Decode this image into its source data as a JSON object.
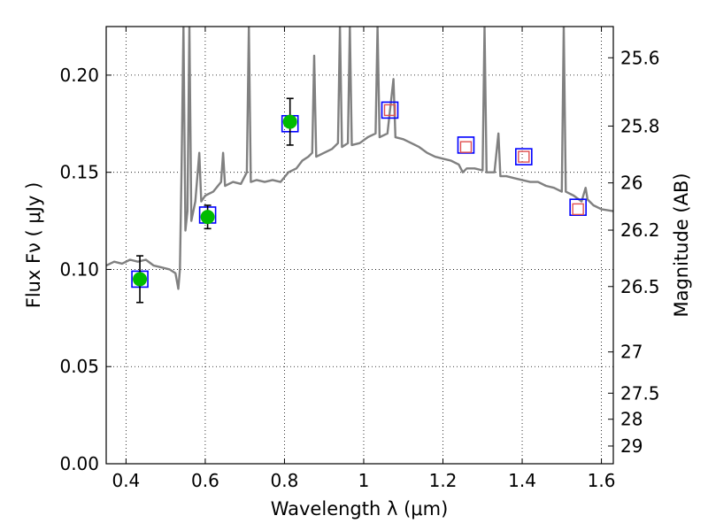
{
  "chart_data": {
    "type": "scatter",
    "xlabel": "Wavelength  λ (μm)",
    "ylabel": "Flux  Fν  ( μJy )",
    "y2label": "Magnitude (AB)",
    "xlim": [
      0.35,
      1.63
    ],
    "ylim": [
      0.0,
      0.225
    ],
    "grid": true,
    "colors": {
      "spectrum": "#808080",
      "observed_points": "#00bb00",
      "model_squares": "#0000ff",
      "synthetic_squares": "#e05050",
      "errorbars": "#000000"
    },
    "x_ticks": [
      {
        "value": 0.4,
        "label": "0.4"
      },
      {
        "value": 0.6,
        "label": "0.6"
      },
      {
        "value": 0.8,
        "label": "0.8"
      },
      {
        "value": 1.0,
        "label": "1"
      },
      {
        "value": 1.2,
        "label": "1.2"
      },
      {
        "value": 1.4,
        "label": "1.4"
      },
      {
        "value": 1.6,
        "label": "1.6"
      }
    ],
    "y_ticks": [
      {
        "value": 0.0,
        "label": "0.00"
      },
      {
        "value": 0.05,
        "label": "0.05"
      },
      {
        "value": 0.1,
        "label": "0.10"
      },
      {
        "value": 0.15,
        "label": "0.15"
      },
      {
        "value": 0.2,
        "label": "0.20"
      }
    ],
    "mag_ticks": [
      {
        "mag": 25.6,
        "label": "25.6"
      },
      {
        "mag": 25.8,
        "label": "25.8"
      },
      {
        "mag": 26.0,
        "label": "26"
      },
      {
        "mag": 26.2,
        "label": "26.2"
      },
      {
        "mag": 26.5,
        "label": "26.5"
      },
      {
        "mag": 27.0,
        "label": "27"
      },
      {
        "mag": 27.5,
        "label": "27.5"
      },
      {
        "mag": 28.0,
        "label": "28"
      },
      {
        "mag": 29.0,
        "label": "29"
      }
    ],
    "observed": [
      {
        "x": 0.435,
        "y": 0.095,
        "err": 0.012
      },
      {
        "x": 0.606,
        "y": 0.127,
        "err": 0.006
      },
      {
        "x": 0.814,
        "y": 0.176,
        "err": 0.012
      }
    ],
    "model_photometry": [
      {
        "x": 0.435,
        "y": 0.095
      },
      {
        "x": 0.606,
        "y": 0.128
      },
      {
        "x": 0.814,
        "y": 0.175
      },
      {
        "x": 1.066,
        "y": 0.182
      },
      {
        "x": 1.258,
        "y": 0.164
      },
      {
        "x": 1.404,
        "y": 0.158
      },
      {
        "x": 1.541,
        "y": 0.132
      }
    ],
    "synthetic_photometry": [
      {
        "x": 1.066,
        "y": 0.182
      },
      {
        "x": 1.258,
        "y": 0.163
      },
      {
        "x": 1.404,
        "y": 0.158
      },
      {
        "x": 1.541,
        "y": 0.131
      }
    ],
    "spectrum": [
      [
        0.35,
        0.102
      ],
      [
        0.37,
        0.104
      ],
      [
        0.39,
        0.103
      ],
      [
        0.41,
        0.105
      ],
      [
        0.43,
        0.104
      ],
      [
        0.45,
        0.105
      ],
      [
        0.47,
        0.102
      ],
      [
        0.49,
        0.101
      ],
      [
        0.51,
        0.1
      ],
      [
        0.525,
        0.098
      ],
      [
        0.532,
        0.09
      ],
      [
        0.536,
        0.1
      ],
      [
        0.54,
        0.15
      ],
      [
        0.545,
        0.225
      ],
      [
        0.55,
        0.12
      ],
      [
        0.555,
        0.13
      ],
      [
        0.56,
        0.225
      ],
      [
        0.565,
        0.125
      ],
      [
        0.575,
        0.135
      ],
      [
        0.585,
        0.16
      ],
      [
        0.59,
        0.135
      ],
      [
        0.6,
        0.138
      ],
      [
        0.62,
        0.14
      ],
      [
        0.64,
        0.145
      ],
      [
        0.645,
        0.16
      ],
      [
        0.65,
        0.143
      ],
      [
        0.67,
        0.145
      ],
      [
        0.69,
        0.144
      ],
      [
        0.705,
        0.15
      ],
      [
        0.71,
        0.225
      ],
      [
        0.715,
        0.145
      ],
      [
        0.73,
        0.146
      ],
      [
        0.75,
        0.145
      ],
      [
        0.77,
        0.146
      ],
      [
        0.79,
        0.145
      ],
      [
        0.81,
        0.15
      ],
      [
        0.83,
        0.152
      ],
      [
        0.845,
        0.156
      ],
      [
        0.86,
        0.158
      ],
      [
        0.87,
        0.16
      ],
      [
        0.875,
        0.21
      ],
      [
        0.88,
        0.158
      ],
      [
        0.9,
        0.16
      ],
      [
        0.92,
        0.162
      ],
      [
        0.935,
        0.165
      ],
      [
        0.94,
        0.225
      ],
      [
        0.945,
        0.163
      ],
      [
        0.96,
        0.165
      ],
      [
        0.965,
        0.225
      ],
      [
        0.97,
        0.164
      ],
      [
        0.99,
        0.165
      ],
      [
        1.01,
        0.168
      ],
      [
        1.03,
        0.17
      ],
      [
        1.035,
        0.225
      ],
      [
        1.04,
        0.168
      ],
      [
        1.06,
        0.17
      ],
      [
        1.075,
        0.198
      ],
      [
        1.08,
        0.168
      ],
      [
        1.1,
        0.167
      ],
      [
        1.12,
        0.165
      ],
      [
        1.14,
        0.163
      ],
      [
        1.16,
        0.16
      ],
      [
        1.18,
        0.158
      ],
      [
        1.2,
        0.157
      ],
      [
        1.22,
        0.156
      ],
      [
        1.24,
        0.154
      ],
      [
        1.25,
        0.15
      ],
      [
        1.26,
        0.152
      ],
      [
        1.28,
        0.152
      ],
      [
        1.3,
        0.151
      ],
      [
        1.305,
        0.225
      ],
      [
        1.31,
        0.15
      ],
      [
        1.33,
        0.15
      ],
      [
        1.34,
        0.17
      ],
      [
        1.345,
        0.148
      ],
      [
        1.36,
        0.148
      ],
      [
        1.38,
        0.147
      ],
      [
        1.4,
        0.146
      ],
      [
        1.42,
        0.145
      ],
      [
        1.44,
        0.145
      ],
      [
        1.46,
        0.143
      ],
      [
        1.48,
        0.142
      ],
      [
        1.5,
        0.14
      ],
      [
        1.505,
        0.225
      ],
      [
        1.51,
        0.14
      ],
      [
        1.53,
        0.138
      ],
      [
        1.55,
        0.135
      ],
      [
        1.56,
        0.142
      ],
      [
        1.565,
        0.136
      ],
      [
        1.58,
        0.133
      ],
      [
        1.6,
        0.131
      ],
      [
        1.63,
        0.13
      ]
    ]
  }
}
